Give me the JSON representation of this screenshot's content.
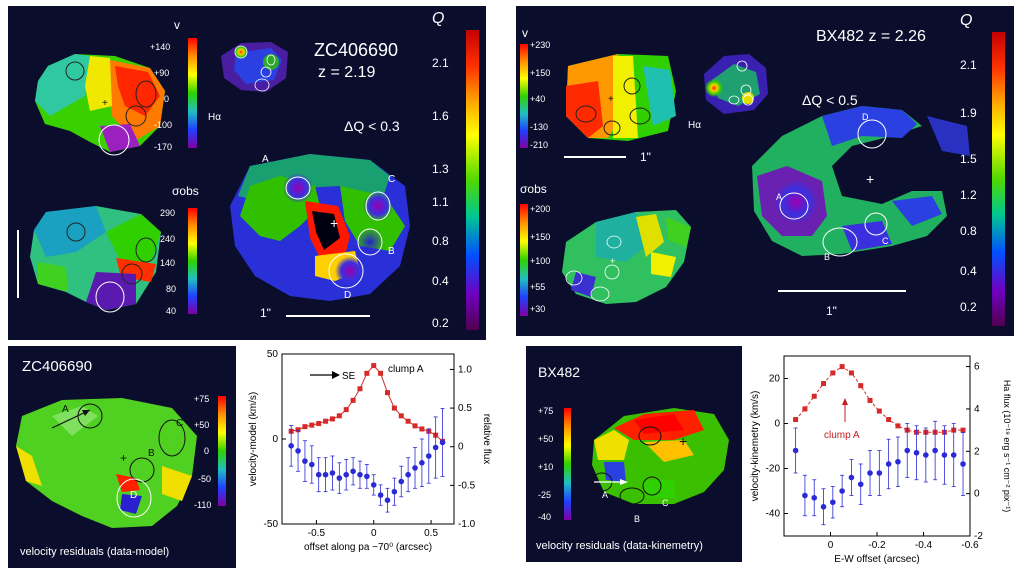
{
  "colors": {
    "panel_bg": "#0a0d2c",
    "red_series": "#d62a2a",
    "blue_series": "#2a2ad6",
    "arrow_red": "#c02020"
  },
  "top_left": {
    "title": "ZC406690",
    "redshift": "z = 2.19",
    "q_symbol": "Q",
    "delta_q": "ΔQ < 0.3",
    "v_label": "v",
    "v_ticks": [
      "+140",
      "+90",
      "0",
      "-100",
      "-170"
    ],
    "ha_label": "Hα",
    "sigma_label": "σobs",
    "sigma_ticks": [
      "290",
      "240",
      "140",
      "80",
      "40"
    ],
    "q_ticks": [
      "2.1",
      "1.6",
      "1.3",
      "1.1",
      "0.8",
      "0.4",
      "0.2"
    ],
    "clumps": [
      "A",
      "B",
      "C",
      "D"
    ],
    "scale": "1\""
  },
  "top_right": {
    "title": "BX482 z = 2.26",
    "q_symbol": "Q",
    "delta_q": "ΔQ < 0.5",
    "v_label": "v",
    "v_ticks": [
      "+230",
      "+150",
      "+40",
      "-130",
      "-210"
    ],
    "ha_label": "Hα",
    "sigma_label": "σobs",
    "sigma_ticks": [
      "+200",
      "+150",
      "+100",
      "+55",
      "+30"
    ],
    "q_ticks": [
      "2.1",
      "1.9",
      "1.5",
      "1.2",
      "0.8",
      "0.4",
      "0.2"
    ],
    "clumps": [
      "A",
      "B",
      "C",
      "D"
    ],
    "scale_small": "1\"",
    "scale": "1\""
  },
  "bottom_left": {
    "title": "ZC406690",
    "caption": "velocity residuals (data-model)",
    "ticks": [
      "+75",
      "+50",
      "0",
      "-50",
      "-110"
    ],
    "clumps": [
      "A",
      "B",
      "C",
      "D"
    ]
  },
  "bottom_right": {
    "title": "BX482",
    "caption": "velocity residuals (data-kinemetry)",
    "ticks": [
      "+75",
      "+50",
      "+10",
      "-25",
      "-40"
    ],
    "clumps": [
      "A",
      "B",
      "C"
    ]
  },
  "chart_data": [
    {
      "type": "scatter",
      "xlabel": "offset along pa −70⁰ (arcsec)",
      "ylabel": "velocity-model (km/s)",
      "y2label": "relative flux",
      "xlim": [
        -0.8,
        0.7
      ],
      "ylim": [
        -50,
        50
      ],
      "y2lim": [
        -1.0,
        1.2
      ],
      "x_ticks": [
        "-0.5",
        "0",
        "0.5"
      ],
      "y_ticks": [
        "50",
        "0",
        "-50"
      ],
      "y2_ticks": [
        "1.0",
        "0.5",
        "0",
        "-0.5",
        "-1.0"
      ],
      "annotations": [
        "SE",
        "clump A"
      ],
      "series": [
        {
          "values": [
            {
              "x": -0.72,
              "y": 0.2
            },
            {
              "x": -0.66,
              "y": 0.22
            },
            {
              "x": -0.6,
              "y": 0.26
            },
            {
              "x": -0.54,
              "y": 0.28
            },
            {
              "x": -0.48,
              "y": 0.3
            },
            {
              "x": -0.42,
              "y": 0.33
            },
            {
              "x": -0.36,
              "y": 0.36
            },
            {
              "x": -0.3,
              "y": 0.4
            },
            {
              "x": -0.24,
              "y": 0.48
            },
            {
              "x": -0.18,
              "y": 0.6
            },
            {
              "x": -0.12,
              "y": 0.75
            },
            {
              "x": -0.06,
              "y": 0.95
            },
            {
              "x": 0.0,
              "y": 1.05
            },
            {
              "x": 0.06,
              "y": 0.95
            },
            {
              "x": 0.12,
              "y": 0.7
            },
            {
              "x": 0.18,
              "y": 0.5
            },
            {
              "x": 0.24,
              "y": 0.4
            },
            {
              "x": 0.3,
              "y": 0.33
            },
            {
              "x": 0.36,
              "y": 0.27
            },
            {
              "x": 0.42,
              "y": 0.23
            },
            {
              "x": 0.48,
              "y": 0.2
            },
            {
              "x": 0.54,
              "y": 0.15
            },
            {
              "x": 0.6,
              "y": 0.07
            }
          ]
        },
        {
          "values": [
            {
              "x": -0.72,
              "y": -4,
              "err": 12
            },
            {
              "x": -0.66,
              "y": -7,
              "err": 12
            },
            {
              "x": -0.6,
              "y": -13,
              "err": 12
            },
            {
              "x": -0.54,
              "y": -15,
              "err": 11
            },
            {
              "x": -0.48,
              "y": -21,
              "err": 10
            },
            {
              "x": -0.42,
              "y": -21,
              "err": 10
            },
            {
              "x": -0.36,
              "y": -20,
              "err": 10
            },
            {
              "x": -0.3,
              "y": -23,
              "err": 9
            },
            {
              "x": -0.24,
              "y": -21,
              "err": 9
            },
            {
              "x": -0.18,
              "y": -19,
              "err": 8
            },
            {
              "x": -0.12,
              "y": -21,
              "err": 8
            },
            {
              "x": -0.06,
              "y": -22,
              "err": 7
            },
            {
              "x": 0.0,
              "y": -27,
              "err": 6
            },
            {
              "x": 0.06,
              "y": -33,
              "err": 6
            },
            {
              "x": 0.12,
              "y": -36,
              "err": 7
            },
            {
              "x": 0.18,
              "y": -31,
              "err": 8
            },
            {
              "x": 0.24,
              "y": -25,
              "err": 9
            },
            {
              "x": 0.3,
              "y": -21,
              "err": 10
            },
            {
              "x": 0.36,
              "y": -17,
              "err": 12
            },
            {
              "x": 0.42,
              "y": -14,
              "err": 14
            },
            {
              "x": 0.48,
              "y": -10,
              "err": 16
            },
            {
              "x": 0.54,
              "y": -5,
              "err": 18
            },
            {
              "x": 0.6,
              "y": -2,
              "err": 20
            }
          ]
        }
      ]
    },
    {
      "type": "scatter",
      "xlabel": "E-W offset (arcsec)",
      "ylabel": "velocity-kinemetry (km/s)",
      "y2label": "Ha flux (10⁻¹⁹ erg s⁻¹ cm⁻² pix⁻¹)",
      "xlim": [
        0.2,
        -0.6
      ],
      "ylim": [
        -50,
        30
      ],
      "y2lim": [
        -2,
        6.5
      ],
      "x_ticks": [
        "0",
        "-0.2",
        "-0.4",
        "-0.6"
      ],
      "y_ticks": [
        "20",
        "0",
        "-20",
        "-40"
      ],
      "y2_ticks": [
        "6",
        "4",
        "2",
        "0",
        "-2"
      ],
      "annotations": [
        "clump A"
      ],
      "series": [
        {
          "values": [
            {
              "x": 0.15,
              "y": 3.5
            },
            {
              "x": 0.11,
              "y": 4.0
            },
            {
              "x": 0.07,
              "y": 4.6
            },
            {
              "x": 0.03,
              "y": 5.2
            },
            {
              "x": -0.01,
              "y": 5.7
            },
            {
              "x": -0.05,
              "y": 6.0
            },
            {
              "x": -0.09,
              "y": 5.7
            },
            {
              "x": -0.13,
              "y": 5.1
            },
            {
              "x": -0.17,
              "y": 4.4
            },
            {
              "x": -0.21,
              "y": 3.9
            },
            {
              "x": -0.25,
              "y": 3.5
            },
            {
              "x": -0.29,
              "y": 3.2
            },
            {
              "x": -0.33,
              "y": 3.0
            },
            {
              "x": -0.37,
              "y": 2.9
            },
            {
              "x": -0.41,
              "y": 2.9
            },
            {
              "x": -0.45,
              "y": 2.9
            },
            {
              "x": -0.49,
              "y": 2.9
            },
            {
              "x": -0.53,
              "y": 3.0
            },
            {
              "x": -0.57,
              "y": 3.0
            }
          ]
        },
        {
          "values": [
            {
              "x": 0.15,
              "y": -12,
              "err": 10
            },
            {
              "x": 0.11,
              "y": -32,
              "err": 9
            },
            {
              "x": 0.07,
              "y": -33,
              "err": 8
            },
            {
              "x": 0.03,
              "y": -37,
              "err": 8
            },
            {
              "x": -0.01,
              "y": -35,
              "err": 7
            },
            {
              "x": -0.05,
              "y": -30,
              "err": 7
            },
            {
              "x": -0.09,
              "y": -24,
              "err": 8
            },
            {
              "x": -0.13,
              "y": -27,
              "err": 9
            },
            {
              "x": -0.17,
              "y": -22,
              "err": 10
            },
            {
              "x": -0.21,
              "y": -22,
              "err": 10
            },
            {
              "x": -0.25,
              "y": -18,
              "err": 11
            },
            {
              "x": -0.29,
              "y": -17,
              "err": 11
            },
            {
              "x": -0.33,
              "y": -12,
              "err": 12
            },
            {
              "x": -0.37,
              "y": -13,
              "err": 12
            },
            {
              "x": -0.41,
              "y": -14,
              "err": 12
            },
            {
              "x": -0.45,
              "y": -12,
              "err": 13
            },
            {
              "x": -0.49,
              "y": -14,
              "err": 13
            },
            {
              "x": -0.53,
              "y": -14,
              "err": 14
            },
            {
              "x": -0.57,
              "y": -18,
              "err": 14
            }
          ]
        }
      ]
    }
  ]
}
